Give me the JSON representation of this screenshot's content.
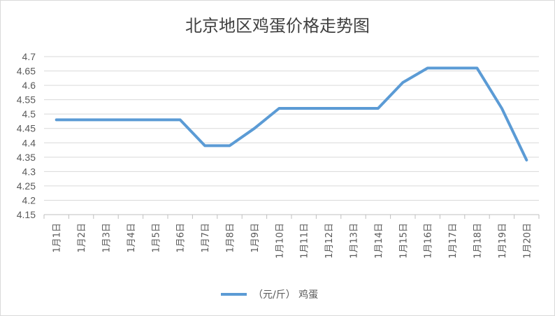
{
  "chart_data": {
    "type": "line",
    "title": "北京地区鸡蛋价格走势图",
    "categories": [
      "1月1日",
      "1月2日",
      "1月3日",
      "1月4日",
      "1月5日",
      "1月6日",
      "1月7日",
      "1月8日",
      "1月9日",
      "1月10日",
      "1月11日",
      "1月12日",
      "1月13日",
      "1月14日",
      "1月15日",
      "1月16日",
      "1月17日",
      "1月18日",
      "1月19日",
      "1月20日"
    ],
    "series": [
      {
        "name": "（元/斤） 鸡蛋",
        "color": "#5b9bd5",
        "values": [
          4.48,
          4.48,
          4.48,
          4.48,
          4.48,
          4.48,
          4.39,
          4.39,
          4.45,
          4.52,
          4.52,
          4.52,
          4.52,
          4.52,
          4.61,
          4.66,
          4.66,
          4.66,
          4.52,
          4.34
        ]
      }
    ],
    "ylim": [
      4.15,
      4.7
    ],
    "yticks": [
      "4.15",
      "4.2",
      "4.25",
      "4.3",
      "4.35",
      "4.4",
      "4.45",
      "4.5",
      "4.55",
      "4.6",
      "4.65",
      "4.7"
    ],
    "grid": true,
    "legend_position": "bottom"
  }
}
